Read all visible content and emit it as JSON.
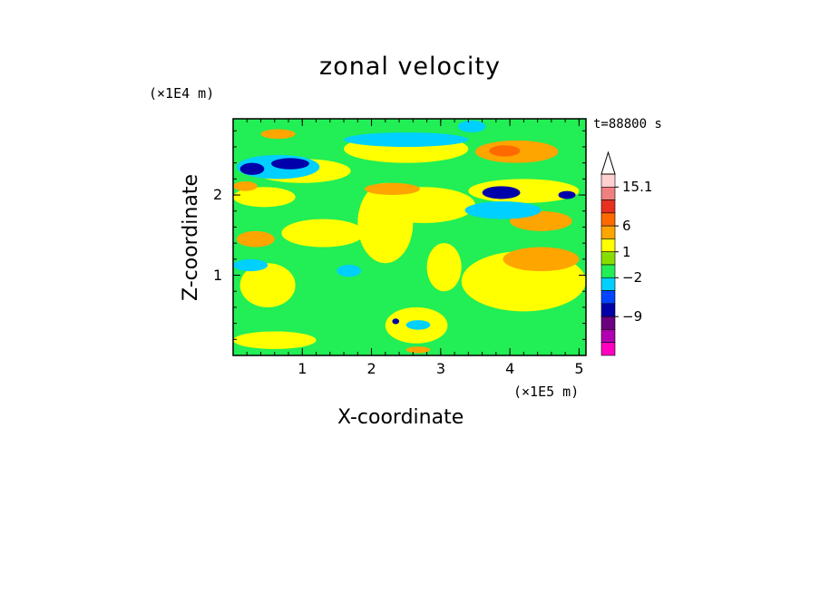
{
  "chart_data": {
    "type": "heatmap",
    "title": "zonal velocity",
    "xlabel": "X-coordinate",
    "ylabel": "Z-coordinate",
    "x_unit": "(×1E5 m)",
    "z_unit": "(×1E4 m)",
    "time_label": "t=88800 s",
    "xlim": [
      0,
      5.1
    ],
    "ylim": [
      0,
      2.95
    ],
    "x_ticks": [
      1,
      2,
      3,
      4,
      5
    ],
    "x_tick_labels": [
      "1",
      "2",
      "3",
      "4",
      "5"
    ],
    "y_ticks": [
      1,
      2
    ],
    "y_tick_labels": [
      "1",
      "2"
    ],
    "colorbar": {
      "labels": [
        "15.1",
        "6",
        "1",
        "−2",
        "−9"
      ],
      "label_values": [
        15.1,
        6,
        1,
        -2,
        -9
      ],
      "colors": [
        "#ffd0d0",
        "#f08080",
        "#e83020",
        "#ff6a00",
        "#ffa500",
        "#ffff00",
        "#88dd00",
        "#22ee55",
        "#00d0ff",
        "#0044ff",
        "#0000aa",
        "#6a0080",
        "#b000b0",
        "#ff00c0"
      ],
      "extend": "max"
    },
    "layers": [
      {
        "color": "#22ee55"
      },
      {
        "color": "#ffff00",
        "regions": [
          {
            "x": 0.1,
            "y": 0.6,
            "w": 0.8,
            "h": 0.55
          },
          {
            "x": 0.7,
            "y": 1.35,
            "w": 1.2,
            "h": 0.35
          },
          {
            "x": 1.8,
            "y": 1.15,
            "w": 0.8,
            "h": 1.0
          },
          {
            "x": 3.3,
            "y": 0.55,
            "w": 1.8,
            "h": 0.75
          },
          {
            "x": 3.4,
            "y": 1.9,
            "w": 1.6,
            "h": 0.3
          },
          {
            "x": 0.3,
            "y": 2.15,
            "w": 1.4,
            "h": 0.3
          },
          {
            "x": 1.6,
            "y": 2.4,
            "w": 1.8,
            "h": 0.35
          },
          {
            "x": 2.0,
            "y": 1.65,
            "w": 1.5,
            "h": 0.45
          },
          {
            "x": 0.0,
            "y": 0.08,
            "w": 1.2,
            "h": 0.22
          },
          {
            "x": 2.2,
            "y": 0.15,
            "w": 0.9,
            "h": 0.45
          },
          {
            "x": 0.0,
            "y": 1.85,
            "w": 0.9,
            "h": 0.25
          },
          {
            "x": 2.8,
            "y": 0.8,
            "w": 0.5,
            "h": 0.6
          }
        ]
      },
      {
        "color": "#ffa500",
        "regions": [
          {
            "x": 0.05,
            "y": 1.35,
            "w": 0.55,
            "h": 0.2
          },
          {
            "x": 3.5,
            "y": 2.4,
            "w": 1.2,
            "h": 0.28
          },
          {
            "x": 3.9,
            "y": 1.05,
            "w": 1.1,
            "h": 0.3
          },
          {
            "x": 0.4,
            "y": 2.7,
            "w": 0.5,
            "h": 0.12
          },
          {
            "x": 1.9,
            "y": 2.0,
            "w": 0.8,
            "h": 0.15
          },
          {
            "x": 4.0,
            "y": 1.55,
            "w": 0.9,
            "h": 0.25
          },
          {
            "x": 0.0,
            "y": 2.05,
            "w": 0.35,
            "h": 0.12
          },
          {
            "x": 2.5,
            "y": 0.03,
            "w": 0.35,
            "h": 0.08
          }
        ]
      },
      {
        "color": "#ff6a00",
        "regions": [
          {
            "x": 3.7,
            "y": 2.48,
            "w": 0.45,
            "h": 0.14
          }
        ]
      },
      {
        "color": "#00d0ff",
        "regions": [
          {
            "x": 0.05,
            "y": 2.2,
            "w": 1.2,
            "h": 0.3
          },
          {
            "x": 1.6,
            "y": 2.6,
            "w": 1.8,
            "h": 0.18
          },
          {
            "x": 3.35,
            "y": 1.7,
            "w": 1.1,
            "h": 0.22
          },
          {
            "x": 0.0,
            "y": 1.05,
            "w": 0.5,
            "h": 0.15
          },
          {
            "x": 1.5,
            "y": 0.98,
            "w": 0.35,
            "h": 0.15
          },
          {
            "x": 3.25,
            "y": 2.78,
            "w": 0.4,
            "h": 0.15
          },
          {
            "x": 2.5,
            "y": 0.32,
            "w": 0.35,
            "h": 0.12
          }
        ]
      },
      {
        "color": "#0000aa",
        "regions": [
          {
            "x": 0.1,
            "y": 2.25,
            "w": 0.35,
            "h": 0.15
          },
          {
            "x": 0.55,
            "y": 2.32,
            "w": 0.55,
            "h": 0.14
          },
          {
            "x": 3.6,
            "y": 1.95,
            "w": 0.55,
            "h": 0.16
          },
          {
            "x": 4.7,
            "y": 1.95,
            "w": 0.25,
            "h": 0.1
          },
          {
            "x": 2.3,
            "y": 0.39,
            "w": 0.1,
            "h": 0.07
          }
        ]
      }
    ]
  }
}
